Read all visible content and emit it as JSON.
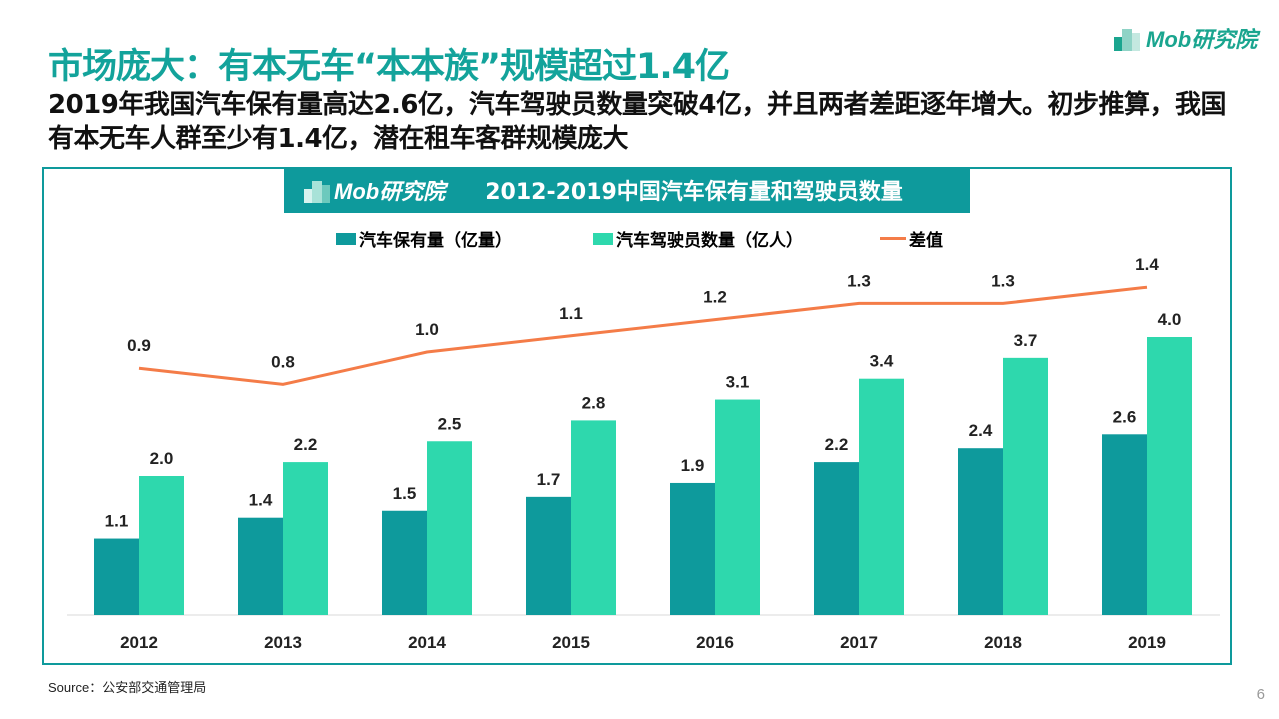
{
  "title": "市场庞大：有本无车“本本族”规模超过1.4亿",
  "subtitle": "2019年我国汽车保有量高达2.6亿，汽车驾驶员数量突破4亿，并且两者差距逐年增大。初步推算，我国有本无车人群至少有1.4亿，潜在租车客群规模庞大",
  "logo": "Mob研究院",
  "source": "Source：公安部交通管理局",
  "page_number": "6",
  "colors": {
    "accent": "#13a39b",
    "vehicles": "#0e9a9c",
    "drivers": "#2ed8ad",
    "gap": "#f47c48"
  },
  "chart_data": {
    "type": "bar+line",
    "title": "2012-2019中国汽车保有量和驾驶员数量",
    "categories": [
      "2012",
      "2013",
      "2014",
      "2015",
      "2016",
      "2017",
      "2018",
      "2019"
    ],
    "series": [
      {
        "name": "汽车保有量（亿量）",
        "type": "bar",
        "values": [
          1.1,
          1.4,
          1.5,
          1.7,
          1.9,
          2.2,
          2.4,
          2.6
        ]
      },
      {
        "name": "汽车驾驶员数量（亿人）",
        "type": "bar",
        "values": [
          2.0,
          2.2,
          2.5,
          2.8,
          3.1,
          3.4,
          3.7,
          4.0
        ]
      },
      {
        "name": "差值",
        "type": "line",
        "values": [
          0.9,
          0.8,
          1.0,
          1.1,
          1.2,
          1.3,
          1.3,
          1.4
        ]
      }
    ],
    "legend": "top",
    "grid": false
  }
}
